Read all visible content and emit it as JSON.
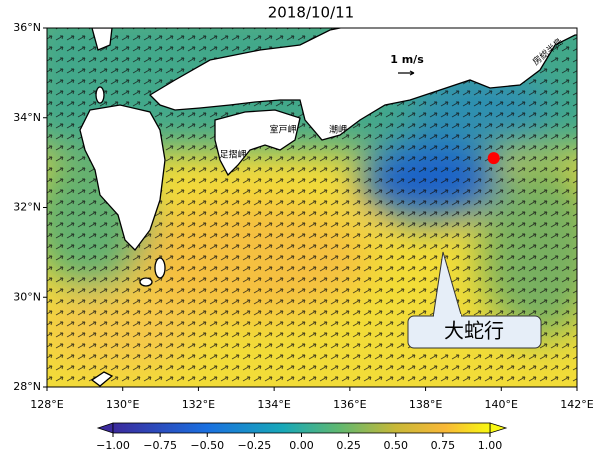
{
  "map": {
    "title": "2018/10/11",
    "xlim": [
      128,
      142
    ],
    "ylim": [
      28,
      36
    ],
    "xticks": [
      {
        "value": 128,
        "label": "128°E"
      },
      {
        "value": 130,
        "label": "130°E"
      },
      {
        "value": 132,
        "label": "132°E"
      },
      {
        "value": 134,
        "label": "134°E"
      },
      {
        "value": 136,
        "label": "136°E"
      },
      {
        "value": 138,
        "label": "138°E"
      },
      {
        "value": 140,
        "label": "140°E"
      },
      {
        "value": 142,
        "label": "142°E"
      }
    ],
    "yticks": [
      {
        "value": 28,
        "label": "28°N"
      },
      {
        "value": 30,
        "label": "30°N"
      },
      {
        "value": 32,
        "label": "32°N"
      },
      {
        "value": 34,
        "label": "34°N"
      },
      {
        "value": 36,
        "label": "36°N"
      }
    ],
    "colorbar": {
      "lim": [
        -1,
        1
      ],
      "ticks": [
        {
          "value": -1,
          "label": "−1.00"
        },
        {
          "value": -0.75,
          "label": "−0.75"
        },
        {
          "value": -0.5,
          "label": "−0.50"
        },
        {
          "value": -0.25,
          "label": "−0.25"
        },
        {
          "value": 0,
          "label": "0.00"
        },
        {
          "value": 0.25,
          "label": "0.25"
        },
        {
          "value": 0.5,
          "label": "0.50"
        },
        {
          "value": 0.75,
          "label": "0.75"
        },
        {
          "value": 1,
          "label": "1.00"
        }
      ]
    },
    "scale_label": "1 m/s",
    "places": [
      "足摺岬",
      "室戸岬",
      "潮岬",
      "房総半島"
    ],
    "annotation": "大蛇行",
    "marker": {
      "lon": 139.8,
      "lat": 33.1,
      "color": "#ff0000"
    }
  }
}
